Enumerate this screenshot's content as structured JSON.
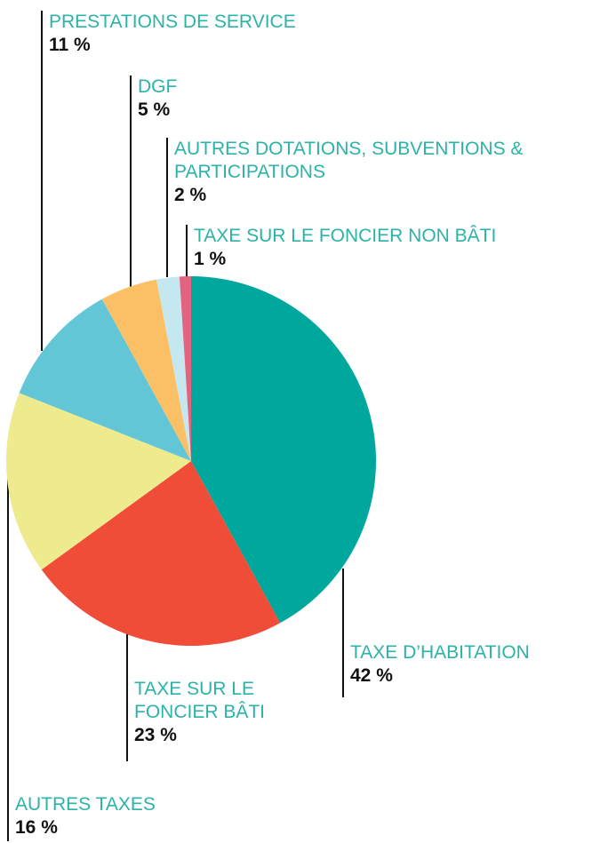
{
  "chart_data": {
    "type": "pie",
    "categories": [
      "TAXE D’HABITATION",
      "TAXE SUR LE FONCIER BÂTI",
      "AUTRES TAXES",
      "PRESTATIONS DE SERVICE",
      "DGF",
      "AUTRES DOTATIONS, SUBVENTIONS & PARTICIPATIONS",
      "TAXE SUR LE FONCIER NON BÂTI"
    ],
    "values": [
      42,
      23,
      16,
      11,
      5,
      2,
      1
    ],
    "value_labels": [
      "42 %",
      "23 %",
      "16 %",
      "11 %",
      "5 %",
      "2 %",
      "1 %"
    ],
    "colors": [
      "#00a79d",
      "#ef4d37",
      "#eeeb8f",
      "#62c6d6",
      "#fbbf66",
      "#c5e7ef",
      "#e2627f"
    ]
  }
}
